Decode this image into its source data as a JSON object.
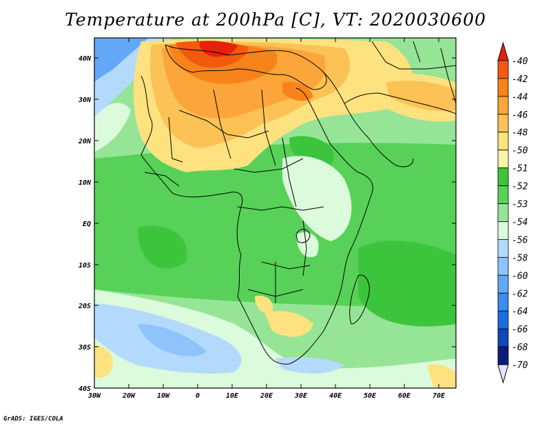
{
  "title": "Temperature at 200hPa [C], VT: 2020030600",
  "credit": "GrADS: IGES/COLA",
  "lat_labels": [
    "40N",
    "30N",
    "20N",
    "10N",
    "EQ",
    "10S",
    "20S",
    "30S",
    "40S"
  ],
  "lon_labels": [
    "30W",
    "20W",
    "10W",
    "0",
    "10E",
    "20E",
    "30E",
    "40E",
    "50E",
    "60E",
    "70E"
  ],
  "colorbar": {
    "labels": [
      "-40",
      "-42",
      "-44",
      "-46",
      "-48",
      "-50",
      "-51",
      "-52",
      "-53",
      "-54",
      "-56",
      "-58",
      "-60",
      "-62",
      "-64",
      "-66",
      "-68",
      "-70"
    ],
    "colors": [
      "#e8210b",
      "#f25a10",
      "#f7841a",
      "#fca53a",
      "#fcc255",
      "#fde27f",
      "#f9f5a8",
      "#3cc53c",
      "#58d158",
      "#96e596",
      "#dcfadc",
      "#b3dafd",
      "#8ec3fb",
      "#62a8f6",
      "#3a8ced",
      "#1b6ce0",
      "#1048b8",
      "#0b1c78",
      "#e6e6ff"
    ]
  },
  "colors": {
    "ocean_land_base": "#96e596",
    "cold_arrow": "#e6e6ff",
    "hot_arrow": "#e8210b"
  }
}
